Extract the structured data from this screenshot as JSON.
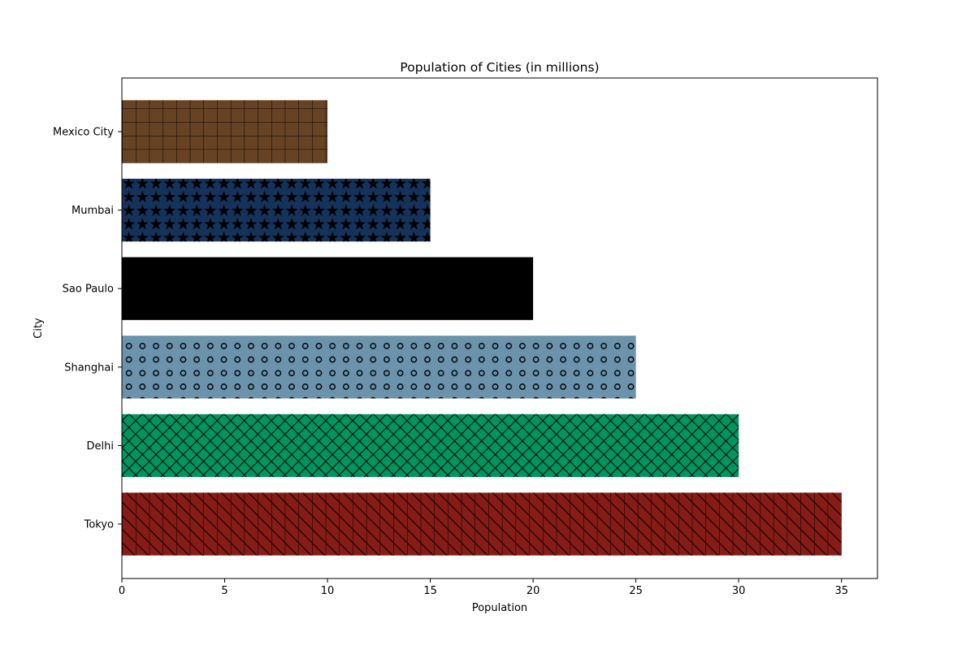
{
  "chart_data": {
    "type": "bar",
    "orientation": "horizontal",
    "title": "Population of Cities (in millions)",
    "xlabel": "Population",
    "ylabel": "City",
    "categories": [
      "Tokyo",
      "Delhi",
      "Shanghai",
      "Sao Paulo",
      "Mumbai",
      "Mexico City"
    ],
    "values": [
      35,
      30,
      25,
      20,
      15,
      10
    ],
    "bar_colors": [
      "#861c15",
      "#009460",
      "#6b93ac",
      "#000000",
      "#15325a",
      "#674324"
    ],
    "hatches": [
      "vertical-diagonal",
      "crosshatch",
      "circles",
      "none",
      "stars",
      "grid"
    ],
    "xlim": [
      0,
      36.75
    ],
    "xticks": [
      0,
      5,
      10,
      15,
      20,
      25,
      30,
      35
    ],
    "grid": false,
    "legend": "none"
  }
}
